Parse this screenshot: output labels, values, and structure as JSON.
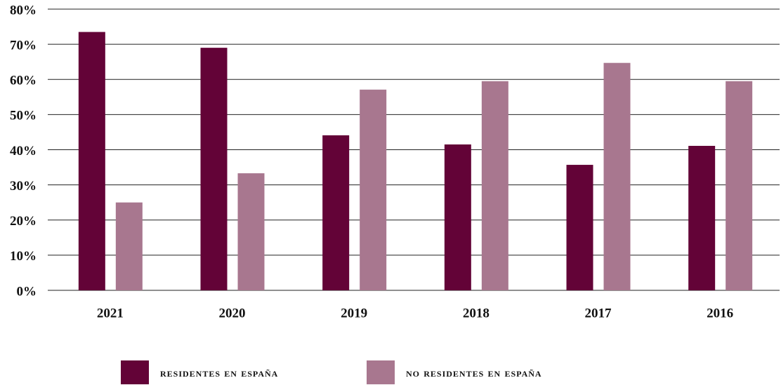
{
  "chart_data": {
    "type": "bar",
    "categories": [
      "2021",
      "2020",
      "2019",
      "2018",
      "2017",
      "2016"
    ],
    "series": [
      {
        "name": "residentes en españa",
        "color": "#630337",
        "values": [
          73.5,
          69,
          44.1,
          41.5,
          35.7,
          41.1
        ]
      },
      {
        "name": "no residentes en españa",
        "color": "#a8778f",
        "values": [
          25,
          33.3,
          57.1,
          59.5,
          64.7,
          59.5
        ]
      }
    ],
    "ylim": [
      0,
      80
    ],
    "yticks": [
      {
        "value": 0,
        "label": "0%"
      },
      {
        "value": 10,
        "label": "10%"
      },
      {
        "value": 20,
        "label": "20%"
      },
      {
        "value": 30,
        "label": "30%"
      },
      {
        "value": 40,
        "label": "40%"
      },
      {
        "value": 50,
        "label": "50%"
      },
      {
        "value": 60,
        "label": "60%"
      },
      {
        "value": 70,
        "label": "70%"
      },
      {
        "value": 80,
        "label": "80%"
      }
    ],
    "grid": true,
    "legend": "bottom"
  }
}
